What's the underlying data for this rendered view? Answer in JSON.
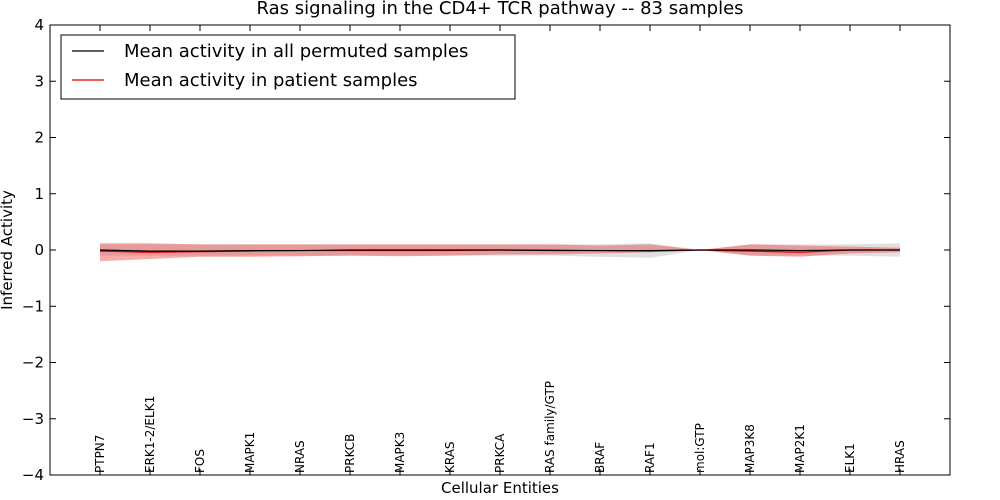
{
  "chart_data": {
    "type": "line",
    "title": "Ras signaling in the CD4+ TCR pathway -- 83 samples",
    "xlabel": "Cellular Entities",
    "ylabel": "Inferred Activity",
    "ylim": [
      -4,
      4
    ],
    "yticks": [
      -4,
      -3,
      -2,
      -1,
      0,
      1,
      2,
      3,
      4
    ],
    "ytick_labels": [
      "−4",
      "−3",
      "−2",
      "−1",
      "0",
      "1",
      "2",
      "3",
      "4"
    ],
    "grid": false,
    "legend_position": "top-left",
    "categories": [
      "PTPN7",
      "ERK1-2/ELK1",
      "FOS",
      "MAPK1",
      "NRAS",
      "PRKCB",
      "MAPK3",
      "KRAS",
      "PRKCA",
      "RAS family/GTP",
      "BRAF",
      "RAF1",
      "mol:GTP",
      "MAP3K8",
      "MAP2K1",
      "ELK1",
      "HRAS"
    ],
    "series": [
      {
        "name": "Mean activity in all permuted samples",
        "color": "#000000",
        "band_color": "#999999",
        "values": [
          0.0,
          -0.02,
          -0.02,
          -0.01,
          -0.01,
          0.0,
          0.0,
          0.0,
          0.0,
          -0.01,
          -0.01,
          -0.01,
          0.0,
          0.0,
          -0.01,
          0.0,
          0.0
        ],
        "band_low": [
          -0.1,
          -0.1,
          -0.1,
          -0.1,
          -0.1,
          -0.1,
          -0.1,
          -0.1,
          -0.1,
          -0.1,
          -0.12,
          -0.14,
          0.0,
          -0.1,
          -0.1,
          -0.1,
          -0.12
        ],
        "band_high": [
          0.1,
          0.1,
          0.1,
          0.1,
          0.1,
          0.1,
          0.1,
          0.1,
          0.1,
          0.1,
          0.1,
          0.12,
          0.0,
          0.1,
          0.1,
          0.1,
          0.12
        ]
      },
      {
        "name": "Mean activity in patient samples",
        "color": "#dd0000",
        "band_color": "#ee4444",
        "values": [
          -0.02,
          -0.04,
          -0.03,
          -0.02,
          -0.01,
          -0.01,
          -0.01,
          -0.01,
          0.0,
          0.0,
          -0.01,
          -0.02,
          0.0,
          -0.02,
          -0.04,
          0.0,
          0.0
        ],
        "band_low": [
          -0.2,
          -0.16,
          -0.12,
          -0.12,
          -0.11,
          -0.1,
          -0.11,
          -0.1,
          -0.08,
          -0.08,
          -0.06,
          -0.04,
          0.0,
          -0.1,
          -0.12,
          -0.06,
          -0.04
        ],
        "band_high": [
          0.12,
          0.12,
          0.1,
          0.1,
          0.1,
          0.1,
          0.1,
          0.1,
          0.1,
          0.1,
          0.08,
          0.1,
          0.0,
          0.1,
          0.08,
          0.06,
          0.04
        ]
      }
    ]
  }
}
